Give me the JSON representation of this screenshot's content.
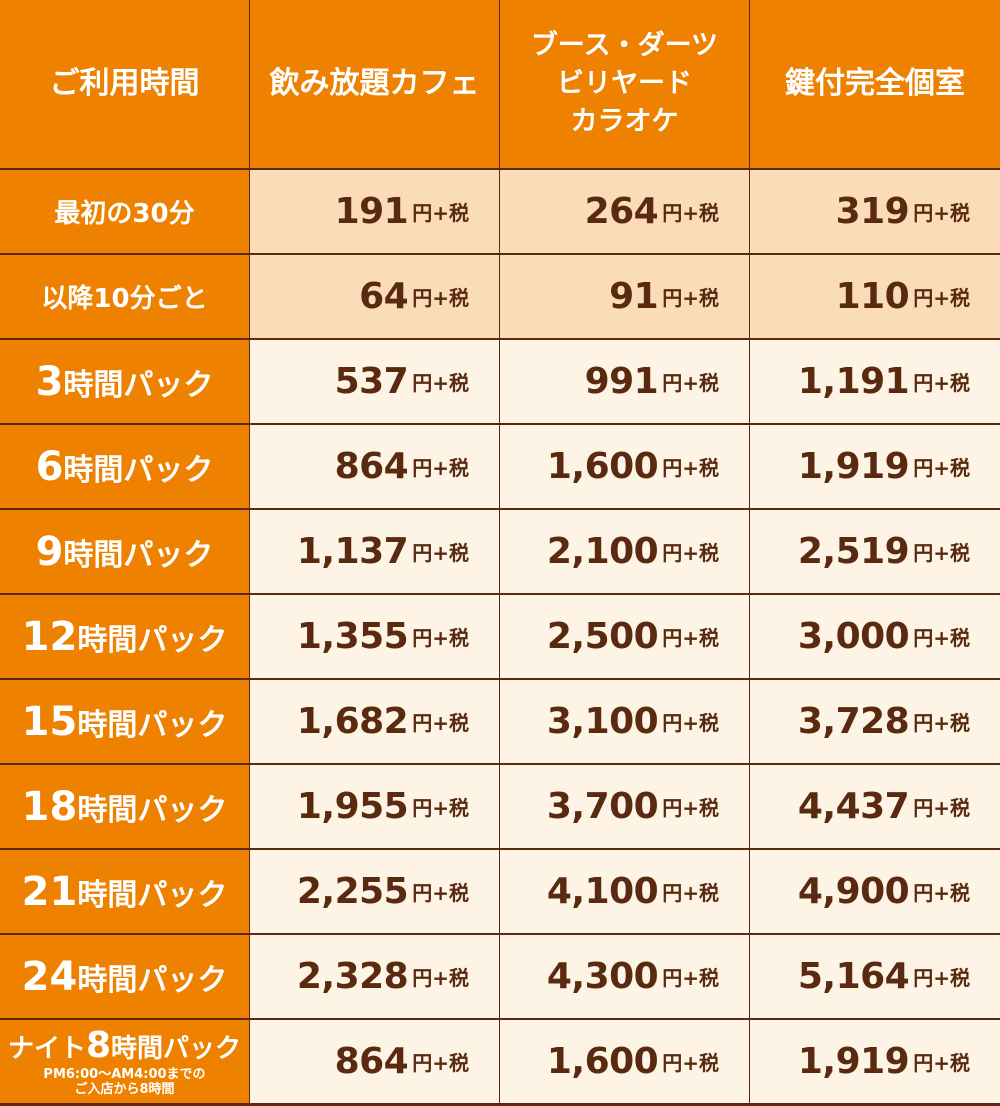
{
  "colors": {
    "header_orange": "#ee8100",
    "border_brown": "#5a2a0e",
    "price_text": "#5a2a10",
    "first_rows_bg": "#fbdcb8",
    "body_bg": "#fdf4e6"
  },
  "headers": {
    "time": "ご利用時間",
    "cafe": "飲み放題カフェ",
    "booth": [
      "ブース・ダーツ",
      "ビリヤード",
      "カラオケ"
    ],
    "room": "鍵付完全個室"
  },
  "unit": "円+税",
  "rows": [
    {
      "label": "最初の30分",
      "prices": [
        "191",
        "264",
        "319"
      ]
    },
    {
      "label": "以降10分ごと",
      "prices": [
        "64",
        "91",
        "110"
      ]
    },
    {
      "hours": "3",
      "suffix": "時間パック",
      "prices": [
        "537",
        "991",
        "1,191"
      ]
    },
    {
      "hours": "6",
      "suffix": "時間パック",
      "prices": [
        "864",
        "1,600",
        "1,919"
      ]
    },
    {
      "hours": "9",
      "suffix": "時間パック",
      "prices": [
        "1,137",
        "2,100",
        "2,519"
      ]
    },
    {
      "hours": "12",
      "suffix": "時間パック",
      "prices": [
        "1,355",
        "2,500",
        "3,000"
      ]
    },
    {
      "hours": "15",
      "suffix": "時間パック",
      "prices": [
        "1,682",
        "3,100",
        "3,728"
      ]
    },
    {
      "hours": "18",
      "suffix": "時間パック",
      "prices": [
        "1,955",
        "3,700",
        "4,437"
      ]
    },
    {
      "hours": "21",
      "suffix": "時間パック",
      "prices": [
        "2,255",
        "4,100",
        "4,900"
      ]
    },
    {
      "hours": "24",
      "suffix": "時間パック",
      "prices": [
        "2,328",
        "4,300",
        "5,164"
      ]
    },
    {
      "prefix": "ナイト",
      "hours": "8",
      "suffix": "時間パック",
      "note1": "PM6:00～AM4:00までの",
      "note2": "ご入店から8時間",
      "prices": [
        "864",
        "1,600",
        "1,919"
      ]
    }
  ]
}
